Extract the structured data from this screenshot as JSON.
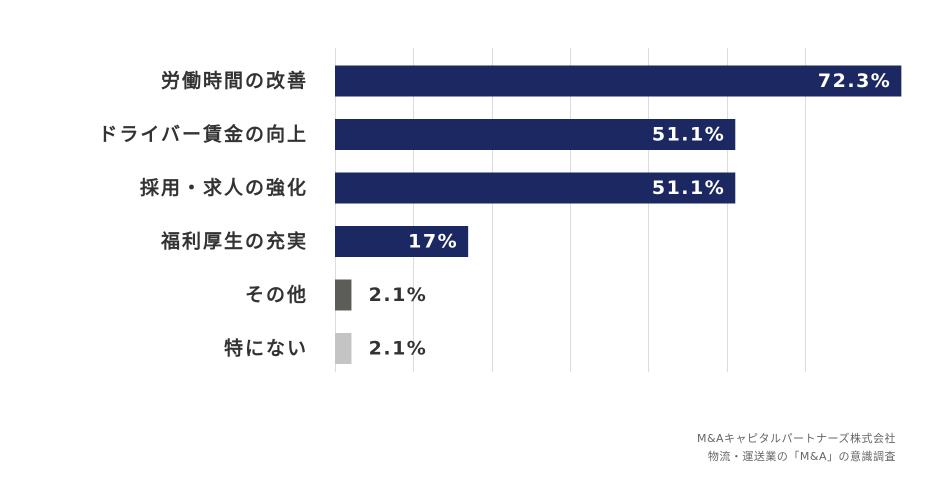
{
  "chart_data": {
    "type": "bar",
    "orientation": "horizontal",
    "categories": [
      "労働時間の改善",
      "ドライバー賃金の向上",
      "採用・求人の強化",
      "福利厚生の充実",
      "その他",
      "特にない"
    ],
    "values": [
      72.3,
      51.1,
      51.1,
      17,
      2.1,
      2.1
    ],
    "value_labels": [
      "72.3%",
      "51.1%",
      "51.1%",
      "17%",
      "2.1%",
      "2.1%"
    ],
    "bar_colors": [
      "#1b2861",
      "#1b2861",
      "#1b2861",
      "#1b2861",
      "#5c5c58",
      "#c4c4c4"
    ],
    "label_colors": [
      "#ffffff",
      "#ffffff",
      "#ffffff",
      "#ffffff",
      "#333333",
      "#333333"
    ],
    "label_inside": [
      true,
      true,
      true,
      true,
      false,
      false
    ],
    "xlim": [
      0,
      60
    ],
    "grid_values": [
      0,
      10,
      20,
      30,
      40,
      50,
      60
    ],
    "grid": true,
    "title": "",
    "xlabel": "",
    "ylabel": ""
  },
  "source": {
    "line1": "M&Aキャピタルパートナーズ株式会社",
    "line2": "物流・運送業の「M&A」の意識調査"
  },
  "colors": {
    "grid": "#dcdcdc",
    "category_text": "#333333"
  }
}
